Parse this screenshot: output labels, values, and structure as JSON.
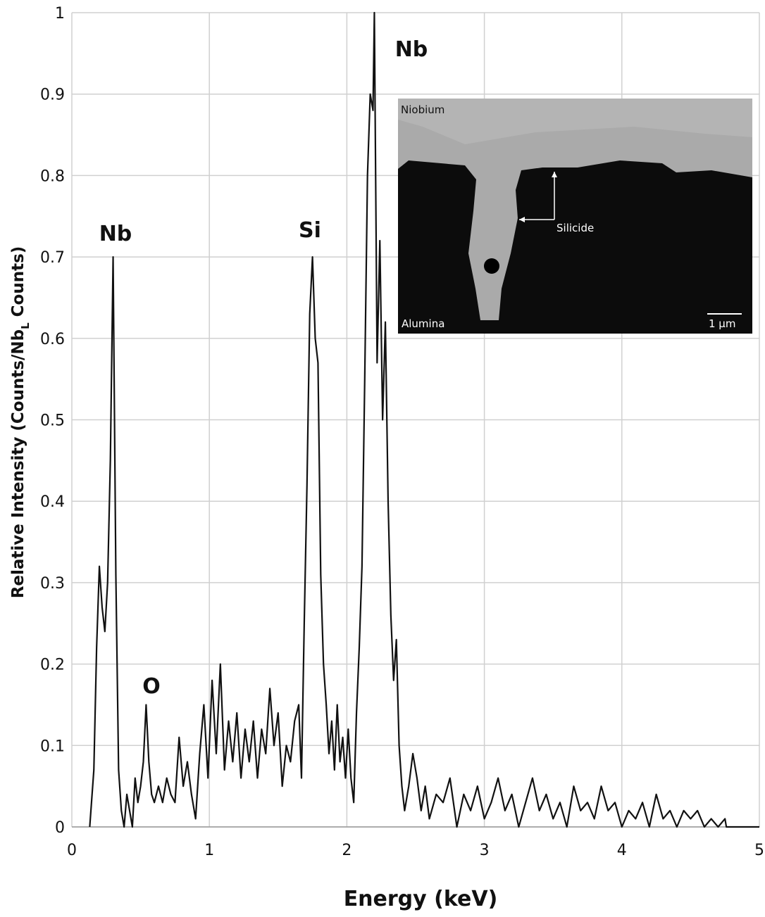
{
  "chart_data": {
    "type": "line",
    "x_label": "Energy (keV)",
    "y_label": [
      "Relative Intensity (Counts/Nb",
      "L",
      " Counts)"
    ],
    "annotations": [
      "Nb",
      "O",
      "Si",
      "Nb"
    ],
    "inset_labels": [
      "Niobium",
      "Silicide",
      "Alumina",
      "1 µm"
    ],
    "xlim": [
      0,
      5
    ],
    "ylim": [
      0,
      1
    ],
    "xticks": [
      0,
      1,
      2,
      3,
      4,
      5
    ],
    "yticks": [
      0,
      0.1,
      0.2,
      0.3,
      0.4,
      0.5,
      0.6,
      0.7,
      0.8,
      0.9,
      1
    ],
    "grid": true,
    "color": "#111111",
    "x": [
      0.13,
      0.16,
      0.18,
      0.2,
      0.22,
      0.24,
      0.26,
      0.28,
      0.3,
      0.32,
      0.34,
      0.36,
      0.38,
      0.4,
      0.42,
      0.44,
      0.46,
      0.48,
      0.5,
      0.52,
      0.54,
      0.56,
      0.58,
      0.6,
      0.63,
      0.66,
      0.69,
      0.72,
      0.75,
      0.78,
      0.81,
      0.84,
      0.87,
      0.9,
      0.93,
      0.96,
      0.99,
      1.02,
      1.05,
      1.08,
      1.11,
      1.14,
      1.17,
      1.2,
      1.23,
      1.26,
      1.29,
      1.32,
      1.35,
      1.38,
      1.41,
      1.44,
      1.47,
      1.5,
      1.53,
      1.56,
      1.59,
      1.62,
      1.65,
      1.67,
      1.69,
      1.71,
      1.73,
      1.75,
      1.77,
      1.79,
      1.81,
      1.83,
      1.85,
      1.87,
      1.89,
      1.91,
      1.93,
      1.95,
      1.97,
      1.99,
      2.01,
      2.03,
      2.05,
      2.07,
      2.09,
      2.11,
      2.13,
      2.15,
      2.17,
      2.19,
      2.2,
      2.22,
      2.24,
      2.26,
      2.28,
      2.3,
      2.32,
      2.34,
      2.36,
      2.38,
      2.4,
      2.42,
      2.45,
      2.48,
      2.51,
      2.54,
      2.57,
      2.6,
      2.65,
      2.7,
      2.75,
      2.8,
      2.85,
      2.9,
      2.95,
      3.0,
      3.05,
      3.1,
      3.15,
      3.2,
      3.25,
      3.3,
      3.35,
      3.4,
      3.45,
      3.5,
      3.55,
      3.6,
      3.65,
      3.7,
      3.75,
      3.8,
      3.85,
      3.9,
      3.95,
      4.0,
      4.05,
      4.1,
      4.15,
      4.2,
      4.25,
      4.3,
      4.35,
      4.4,
      4.45,
      4.5,
      4.55,
      4.6,
      4.65,
      4.7,
      4.75,
      4.76,
      5.0
    ],
    "values": [
      0,
      0.07,
      0.22,
      0.32,
      0.27,
      0.24,
      0.3,
      0.45,
      0.7,
      0.31,
      0.07,
      0.02,
      0,
      0.04,
      0.02,
      0,
      0.06,
      0.03,
      0.05,
      0.08,
      0.15,
      0.08,
      0.04,
      0.03,
      0.05,
      0.03,
      0.06,
      0.04,
      0.03,
      0.11,
      0.05,
      0.08,
      0.04,
      0.01,
      0.09,
      0.15,
      0.06,
      0.18,
      0.09,
      0.2,
      0.07,
      0.13,
      0.08,
      0.14,
      0.06,
      0.12,
      0.08,
      0.13,
      0.06,
      0.12,
      0.09,
      0.17,
      0.1,
      0.14,
      0.05,
      0.1,
      0.08,
      0.13,
      0.15,
      0.06,
      0.25,
      0.42,
      0.63,
      0.7,
      0.6,
      0.57,
      0.31,
      0.2,
      0.15,
      0.09,
      0.13,
      0.07,
      0.15,
      0.08,
      0.11,
      0.06,
      0.12,
      0.06,
      0.03,
      0.14,
      0.22,
      0.32,
      0.55,
      0.8,
      0.9,
      0.88,
      1.0,
      0.57,
      0.72,
      0.5,
      0.62,
      0.4,
      0.26,
      0.18,
      0.23,
      0.1,
      0.05,
      0.02,
      0.05,
      0.09,
      0.06,
      0.02,
      0.05,
      0.01,
      0.04,
      0.03,
      0.06,
      0,
      0.04,
      0.02,
      0.05,
      0.01,
      0.03,
      0.06,
      0.02,
      0.04,
      0,
      0.03,
      0.06,
      0.02,
      0.04,
      0.01,
      0.03,
      0,
      0.05,
      0.02,
      0.03,
      0.01,
      0.05,
      0.02,
      0.03,
      0,
      0.02,
      0.01,
      0.03,
      0,
      0.04,
      0.01,
      0.02,
      0,
      0.02,
      0.01,
      0.02,
      0,
      0.01,
      0,
      0.01,
      0,
      0
    ]
  }
}
